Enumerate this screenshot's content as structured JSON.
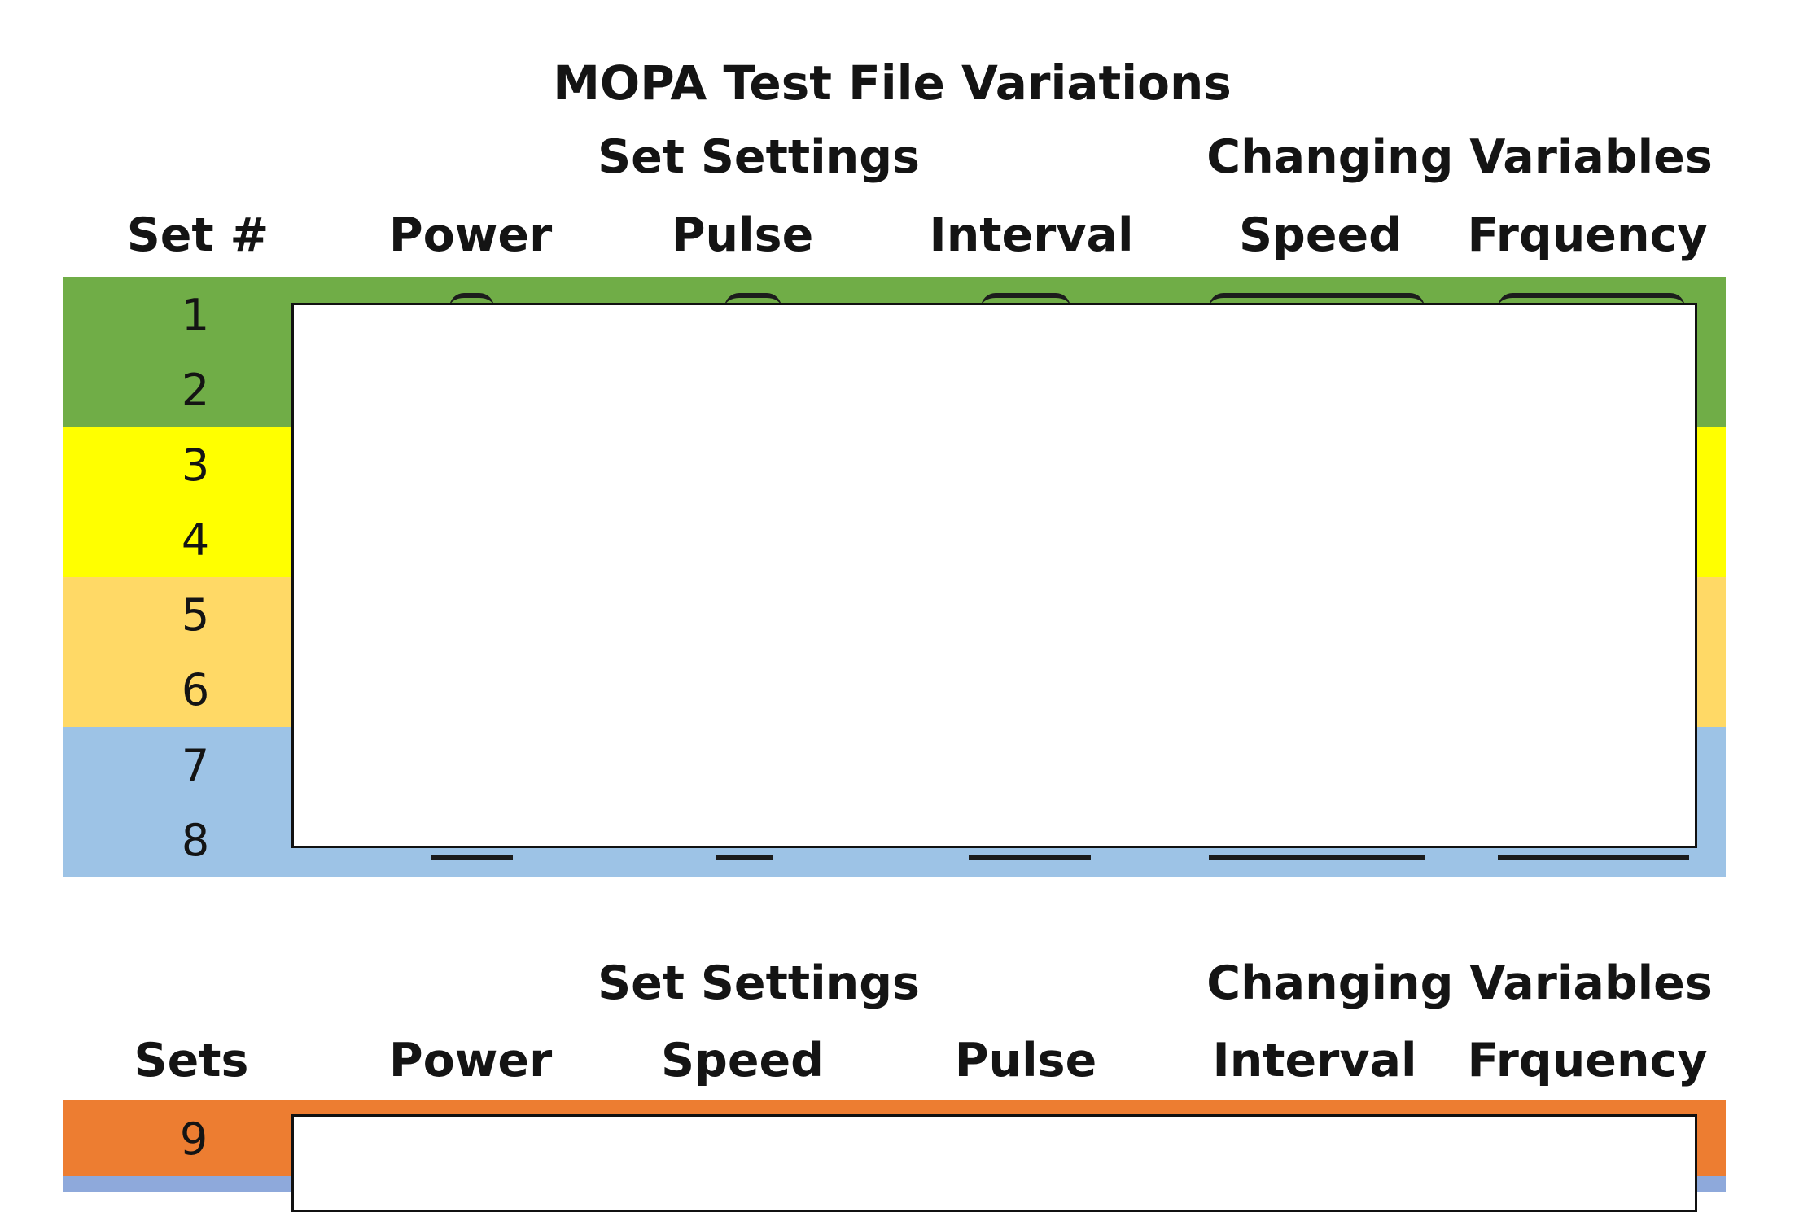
{
  "document": {
    "title": "MOPA Test File Variations"
  },
  "table1": {
    "group_labels": {
      "set_settings": "Set Settings",
      "changing_variables": "Changing Variables"
    },
    "columns": [
      "Set #",
      "Power",
      "Pulse",
      "Interval",
      "Speed",
      "Frquency"
    ],
    "rows": [
      {
        "set": "1",
        "color": "#70ad47"
      },
      {
        "set": "2",
        "color": "#70ad47"
      },
      {
        "set": "3",
        "color": "#ffff00"
      },
      {
        "set": "4",
        "color": "#ffff00"
      },
      {
        "set": "5",
        "color": "#ffd966"
      },
      {
        "set": "6",
        "color": "#ffd966"
      },
      {
        "set": "7",
        "color": "#9dc3e6"
      },
      {
        "set": "8",
        "color": "#9dc3e6"
      }
    ]
  },
  "table2": {
    "group_labels": {
      "set_settings": "Set Settings",
      "changing_variables": "Changing Variables"
    },
    "columns": [
      "Sets",
      "Power",
      "Speed",
      "Pulse",
      "Interval",
      "Frquency"
    ],
    "rows": [
      {
        "set": "9",
        "color": "#ed7d31"
      }
    ]
  }
}
